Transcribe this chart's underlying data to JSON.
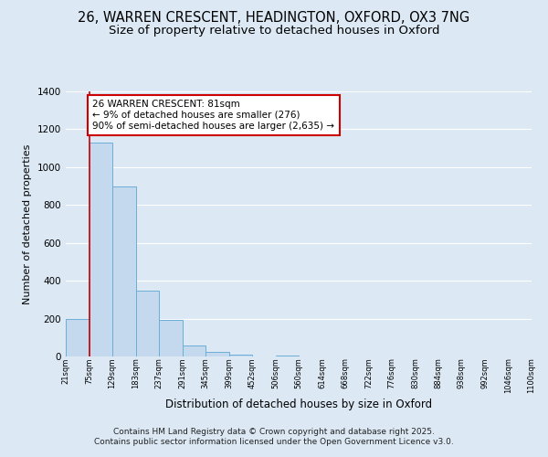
{
  "title_line1": "26, WARREN CRESCENT, HEADINGTON, OXFORD, OX3 7NG",
  "title_line2": "Size of property relative to detached houses in Oxford",
  "xlabel": "Distribution of detached houses by size in Oxford",
  "ylabel": "Number of detached properties",
  "bar_values": [
    200,
    1130,
    900,
    350,
    195,
    60,
    25,
    10,
    0,
    5,
    0,
    0,
    0,
    0,
    0,
    0,
    0,
    0,
    0,
    0
  ],
  "bin_labels": [
    "21sqm",
    "75sqm",
    "129sqm",
    "183sqm",
    "237sqm",
    "291sqm",
    "345sqm",
    "399sqm",
    "452sqm",
    "506sqm",
    "560sqm",
    "614sqm",
    "668sqm",
    "722sqm",
    "776sqm",
    "830sqm",
    "884sqm",
    "938sqm",
    "992sqm",
    "1046sqm",
    "1100sqm"
  ],
  "bar_color": "#c5d9ee",
  "bar_edge_color": "#6aaed6",
  "background_color": "#dce9f5",
  "grid_color": "#ffffff",
  "vline_x": 1,
  "vline_color": "#cc0000",
  "ylim": [
    0,
    1400
  ],
  "yticks": [
    0,
    200,
    400,
    600,
    800,
    1000,
    1200,
    1400
  ],
  "annotation_title": "26 WARREN CRESCENT: 81sqm",
  "annotation_line1": "← 9% of detached houses are smaller (276)",
  "annotation_line2": "90% of semi-detached houses are larger (2,635) →",
  "annotation_box_color": "#ffffff",
  "annotation_box_edge": "#cc0000",
  "footer_line1": "Contains HM Land Registry data © Crown copyright and database right 2025.",
  "footer_line2": "Contains public sector information licensed under the Open Government Licence v3.0.",
  "title_fontsize": 10.5,
  "subtitle_fontsize": 9.5,
  "annotation_fontsize": 7.5,
  "footer_fontsize": 6.5,
  "ylabel_fontsize": 8,
  "xlabel_fontsize": 8.5
}
